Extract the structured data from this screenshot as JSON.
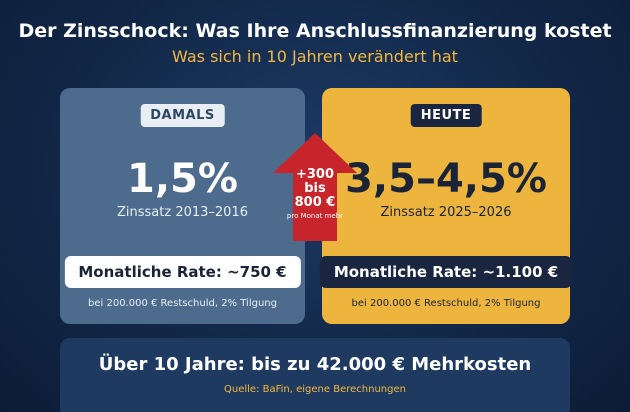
{
  "header": {
    "title": "Der Zinsschock: Was Ihre Anschlussfinanzierung kostet",
    "subtitle": "Was sich in 10 Jahren verändert hat"
  },
  "left_panel": {
    "badge": "DAMALS",
    "rate_big": "1,5%",
    "period": "Zinssatz 2013–2016",
    "monthly": "Monatliche Rate: ~750 €",
    "footnote": "bei 200.000 € Restschuld, 2% Tilgung",
    "color": "#4d6c8d"
  },
  "right_panel": {
    "badge": "HEUTE",
    "rate_big": "3,5–4,5%",
    "period": "Zinssatz 2025–2026",
    "monthly": "Monatliche Rate: ~1.100 €",
    "footnote": "bei 200.000 € Restschuld, 2% Tilgung",
    "color": "#edb53d"
  },
  "arrow": {
    "line1": "+300",
    "line2": "bis",
    "line3": "800 €",
    "line4": "pro Monat mehr",
    "color": "#c8242c",
    "icon": "up-arrow-icon"
  },
  "summary": {
    "title": "Über 10 Jahre: bis zu 42.000 € Mehrkosten",
    "source": "Quelle: BaFin, eigene Berechnungen"
  }
}
